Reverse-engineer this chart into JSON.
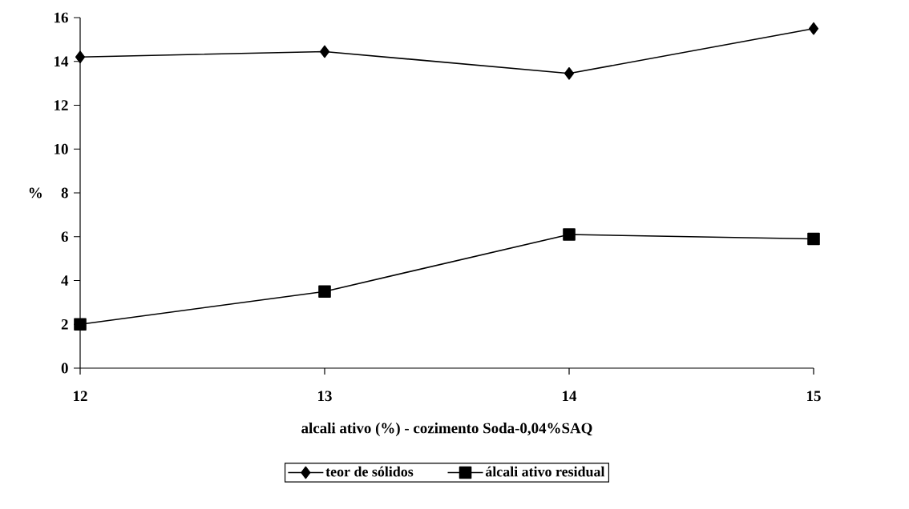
{
  "chart_data": {
    "type": "line",
    "xlabel": "alcali ativo (%) - cozimento Soda-0,04%SAQ",
    "ylabel": "%",
    "x": [
      12,
      13,
      14,
      15
    ],
    "xlim": [
      12,
      15
    ],
    "xticks": [
      12,
      13,
      14,
      15
    ],
    "ylim": [
      0,
      16
    ],
    "yticks": [
      0,
      2,
      4,
      6,
      8,
      10,
      12,
      14,
      16
    ],
    "series": [
      {
        "name": "teor de sólidos",
        "color": "#000000",
        "marker": "diamond",
        "values": [
          14.2,
          14.45,
          13.45,
          15.5
        ]
      },
      {
        "name": "álcali ativo residual",
        "color": "#000000",
        "marker": "square",
        "values": [
          2.0,
          3.5,
          6.1,
          5.9
        ]
      }
    ],
    "legend": "bottom",
    "grid": false
  }
}
